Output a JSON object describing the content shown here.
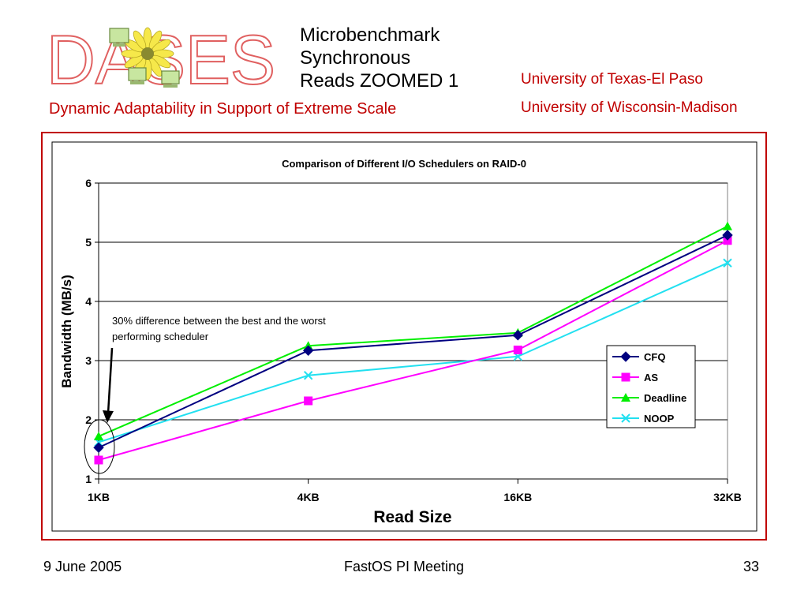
{
  "header": {
    "logo_text": "DASES",
    "title_lines": [
      "Microbenchmark",
      "Synchronous",
      "Reads ZOOMED 1"
    ],
    "subtitle": "Dynamic Adaptability in Support of Extreme Scale",
    "university_1": "University of Texas-El Paso",
    "university_2": "University of Wisconsin-Madison"
  },
  "footer": {
    "date": "9 June 2005",
    "event": "FastOS PI Meeting",
    "page": "33"
  },
  "colors": {
    "accent_red": "#c00000",
    "CFQ": "#000080",
    "AS": "#ff00ff",
    "Deadline": "#00ee00",
    "NOOP": "#22e0f0"
  },
  "chart_data": {
    "type": "line",
    "title": "Comparison of Different I/O Schedulers on RAID-0",
    "xlabel": "Read Size",
    "ylabel": "Bandwidth (MB/s)",
    "categories": [
      "1KB",
      "4KB",
      "16KB",
      "32KB"
    ],
    "ylim": [
      1,
      6
    ],
    "yticks": [
      1,
      2,
      3,
      4,
      5,
      6
    ],
    "grid": true,
    "legend": "right",
    "series": [
      {
        "name": "CFQ",
        "values": [
          1.53,
          3.17,
          3.43,
          5.12
        ],
        "marker": "diamond"
      },
      {
        "name": "AS",
        "values": [
          1.32,
          2.32,
          3.18,
          5.03
        ],
        "marker": "square"
      },
      {
        "name": "Deadline",
        "values": [
          1.72,
          3.25,
          3.47,
          5.27
        ],
        "marker": "triangle"
      },
      {
        "name": "NOOP",
        "values": [
          1.62,
          2.75,
          3.07,
          4.65
        ],
        "marker": "x"
      }
    ],
    "annotation": {
      "text_lines": [
        "30% difference between the best and the worst",
        "performing scheduler"
      ]
    }
  }
}
